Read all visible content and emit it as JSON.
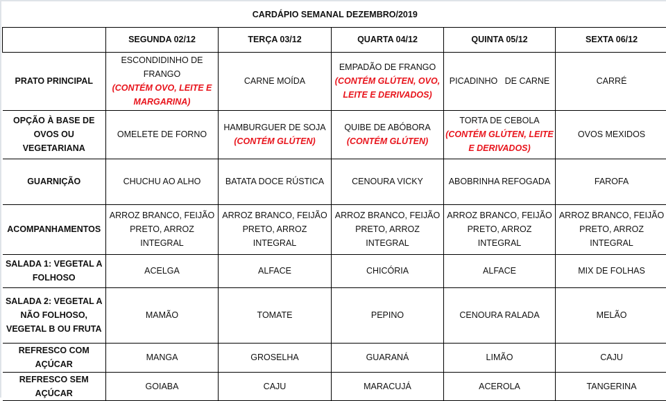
{
  "title": "CARDÁPIO SEMANAL DEZEMBRO/2019",
  "accent_color": "#e8141c",
  "days": [
    "SEGUNDA 02/12",
    "TERÇA 03/12",
    "QUARTA 04/12",
    "QUINTA 05/12",
    "SEXTA 06/12"
  ],
  "rows": [
    {
      "label": "PRATO PRINCIPAL",
      "cells": [
        {
          "text": "ESCONDIDINHO DE FRANGO",
          "allergen": "(CONTÉM OVO, LEITE E MARGARINA)"
        },
        {
          "text": "CARNE MOÍDA"
        },
        {
          "text": "EMPADÃO DE FRANGO",
          "allergen": "(CONTÉM GLÚTEN, OVO, LEITE E DERIVADOS)"
        },
        {
          "text": "PICADINHO   DE CARNE"
        },
        {
          "text": "CARRÉ"
        }
      ]
    },
    {
      "label": "OPÇÃO À BASE DE OVOS OU VEGETARIANA",
      "cells": [
        {
          "text": "OMELETE DE FORNO"
        },
        {
          "text": "HAMBURGUER DE SOJA",
          "allergen": "(CONTÉM GLÚTEN)"
        },
        {
          "text": "QUIBE DE ABÓBORA",
          "allergen": "(CONTÉM GLÚTEN)"
        },
        {
          "text": "TORTA DE CEBOLA",
          "allergen": "(CONTÉM GLÚTEN, LEITE E DERIVADOS)"
        },
        {
          "text": "OVOS MEXIDOS"
        }
      ]
    },
    {
      "label": "GUARNIÇÃO",
      "cells": [
        {
          "text": "CHUCHU AO ALHO"
        },
        {
          "text": "BATATA DOCE RÚSTICA"
        },
        {
          "text": "CENOURA VICKY"
        },
        {
          "text": "ABOBRINHA REFOGADA"
        },
        {
          "text": "FAROFA"
        }
      ]
    },
    {
      "label": "ACOMPANHAMENTOS",
      "cells": [
        {
          "text": "ARROZ BRANCO, FEIJÃO PRETO, ARROZ INTEGRAL"
        },
        {
          "text": "ARROZ BRANCO, FEIJÃO PRETO, ARROZ INTEGRAL"
        },
        {
          "text": "ARROZ BRANCO, FEIJÃO PRETO, ARROZ INTEGRAL"
        },
        {
          "text": "ARROZ BRANCO, FEIJÃO PRETO, ARROZ INTEGRAL"
        },
        {
          "text": "ARROZ BRANCO, FEIJÃO PRETO, ARROZ INTEGRAL"
        }
      ]
    },
    {
      "label": "SALADA 1: VEGETAL A FOLHOSO",
      "cells": [
        {
          "text": "ACELGA"
        },
        {
          "text": "ALFACE"
        },
        {
          "text": "CHICÓRIA"
        },
        {
          "text": "ALFACE"
        },
        {
          "text": "MIX DE FOLHAS"
        }
      ]
    },
    {
      "label": "SALADA 2: VEGETAL A NÃO FOLHOSO, VEGETAL B OU FRUTA",
      "cells": [
        {
          "text": "MAMÃO"
        },
        {
          "text": "TOMATE"
        },
        {
          "text": "PEPINO"
        },
        {
          "text": "CENOURA RALADA"
        },
        {
          "text": "MELÃO"
        }
      ]
    },
    {
      "label": "REFRESCO COM AÇÚCAR",
      "cells": [
        {
          "text": "MANGA"
        },
        {
          "text": "GROSELHA"
        },
        {
          "text": "GUARANÁ"
        },
        {
          "text": "LIMÃO"
        },
        {
          "text": "CAJU"
        }
      ]
    },
    {
      "label": "REFRESCO SEM AÇÚCAR",
      "cells": [
        {
          "text": "GOIABA"
        },
        {
          "text": "CAJU"
        },
        {
          "text": "MARACUJÁ"
        },
        {
          "text": "ACEROLA"
        },
        {
          "text": "TANGERINA"
        }
      ]
    }
  ]
}
